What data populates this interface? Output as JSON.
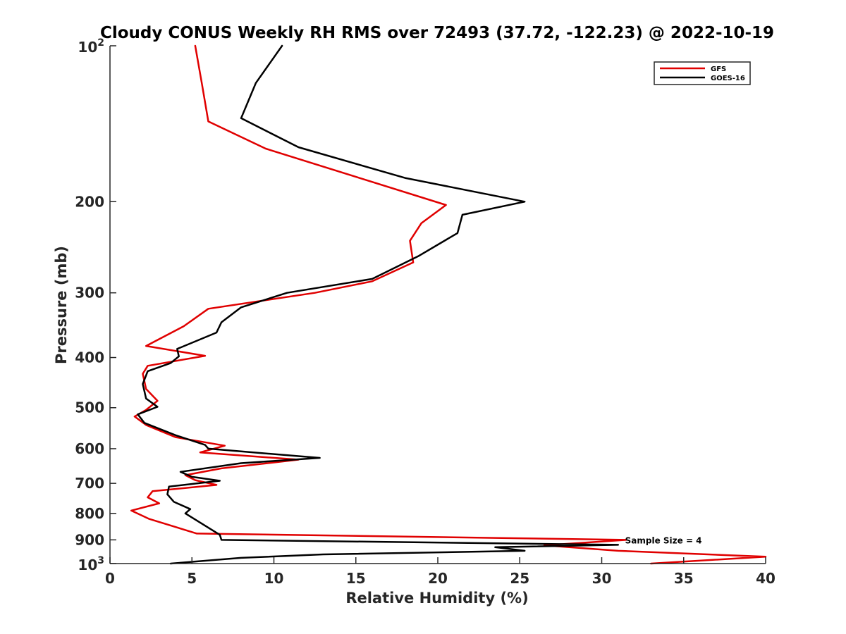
{
  "chart_data": {
    "type": "line",
    "title": "Cloudy CONUS Weekly RH RMS over 72493 (37.72, -122.23) @ 2022-10-19",
    "xlabel": "Relative Humidity (%)",
    "ylabel": "Pressure (mb)",
    "xlim": [
      0,
      40
    ],
    "ylim": [
      100,
      1000
    ],
    "y_scale": "log",
    "y_reversed": true,
    "grid": false,
    "legend_position": "top-right",
    "x_ticks": [
      "0",
      "5",
      "10",
      "15",
      "20",
      "25",
      "30",
      "35",
      "40"
    ],
    "y_ticks": [
      {
        "value": 100,
        "base": "10",
        "exp": "2"
      },
      {
        "value": 200,
        "label": "200"
      },
      {
        "value": 300,
        "label": "300"
      },
      {
        "value": 400,
        "label": "400"
      },
      {
        "value": 500,
        "label": "500"
      },
      {
        "value": 600,
        "label": "600"
      },
      {
        "value": 700,
        "label": "700"
      },
      {
        "value": 800,
        "label": "800"
      },
      {
        "value": 900,
        "label": "900"
      },
      {
        "value": 1000,
        "base": "10",
        "exp": "3"
      }
    ],
    "annotation": "Sample Size = 4",
    "annotation_x": 32.5,
    "annotation_y": 900,
    "series": [
      {
        "name": "GFS",
        "color": "#e00000",
        "x": [
          5.2,
          5.6,
          6.0,
          9.5,
          20.5,
          19.0,
          18.3,
          18.5,
          16.0,
          12.5,
          6.0,
          4.5,
          2.2,
          5.8,
          2.3,
          2.0,
          2.2,
          2.9,
          2.2,
          1.5,
          2.2,
          4.0,
          7.0,
          5.5,
          11.5,
          6.8,
          4.6,
          5.2,
          6.5,
          2.6,
          2.3,
          3.0,
          1.3,
          2.4,
          5.3,
          31.5,
          26.5,
          31.0,
          40.0,
          33.0
        ],
        "y": [
          100,
          118,
          140,
          158,
          203,
          220,
          238,
          262,
          285,
          300,
          322,
          348,
          380,
          397,
          415,
          430,
          460,
          485,
          505,
          520,
          540,
          570,
          592,
          610,
          630,
          655,
          675,
          690,
          705,
          725,
          745,
          765,
          790,
          820,
          875,
          900,
          922,
          945,
          970,
          1000
        ]
      },
      {
        "name": "GOES-16",
        "color": "#000000",
        "x": [
          10.5,
          8.9,
          8.0,
          11.5,
          18.0,
          25.3,
          21.5,
          21.2,
          18.8,
          16.0,
          10.8,
          8.0,
          6.8,
          6.5,
          4.1,
          4.2,
          3.7,
          2.3,
          2.0,
          2.2,
          2.9,
          1.7,
          2.1,
          4.0,
          5.8,
          6.0,
          12.8,
          8.0,
          4.3,
          5.0,
          6.7,
          3.6,
          3.5,
          3.9,
          4.9,
          4.6,
          6.7,
          6.8,
          31.0,
          23.5,
          25.3,
          13.0,
          8.0,
          3.7
        ],
        "y": [
          100,
          118,
          138,
          157,
          180,
          200,
          212,
          230,
          255,
          282,
          300,
          320,
          342,
          358,
          385,
          398,
          410,
          425,
          450,
          480,
          498,
          515,
          535,
          565,
          590,
          600,
          625,
          640,
          665,
          680,
          692,
          710,
          735,
          760,
          785,
          800,
          880,
          900,
          920,
          930,
          945,
          960,
          975,
          1000
        ]
      }
    ]
  }
}
